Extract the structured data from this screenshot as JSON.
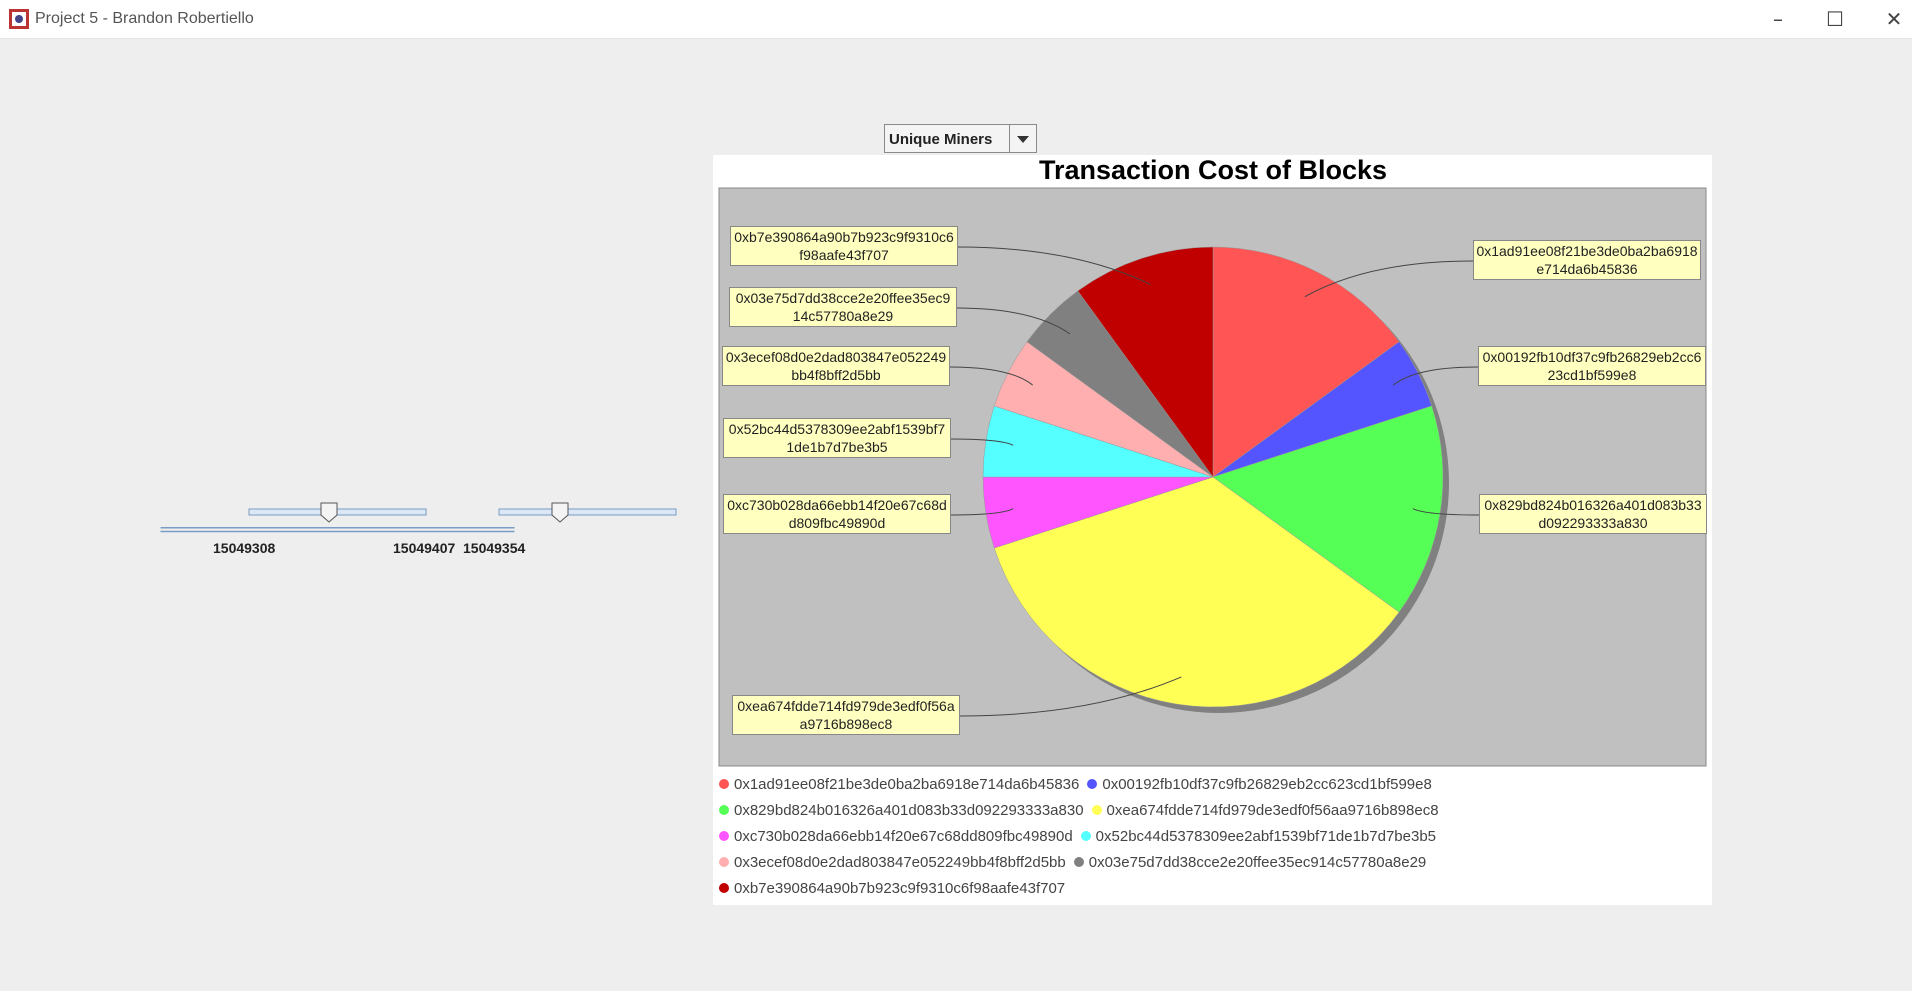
{
  "window": {
    "title": "Project 5 - Brandon Robertiello"
  },
  "dropdown": {
    "selected": "Unique Miners"
  },
  "slider_labels": [
    15049308,
    15049407,
    15049354
  ],
  "chart_data": {
    "type": "pie",
    "title": "Transaction Cost of Blocks",
    "categories": [
      "0x1ad91ee08f21be3de0ba2ba6918e714da6b45836",
      "0x00192fb10df37c9fb26829eb2cc623cd1bf599e8",
      "0x829bd824b016326a401d083b33d092293333a830",
      "0xea674fdde714fd979de3edf0f56aa9716b898ec8",
      "0xc730b028da66ebb14f20e67c68dd809fbc49890d",
      "0x52bc44d5378309ee2abf1539bf71de1b7d7be3b5",
      "0x3ecef08d0e2dad803847e052249bb4f8bff2d5bb",
      "0x03e75d7dd38cce2e20ffee35ec914c57780a8e29",
      "0xb7e390864a90b7b923c9f9310c6f98aafe43f707"
    ],
    "values": [
      3,
      1,
      3,
      7,
      1,
      1,
      1,
      1,
      2
    ],
    "colors": [
      "#ff5555",
      "#5555ff",
      "#55ff55",
      "#ffff55",
      "#ff55ff",
      "#55ffff",
      "#ffafaf",
      "#808080",
      "#c00000"
    ]
  }
}
